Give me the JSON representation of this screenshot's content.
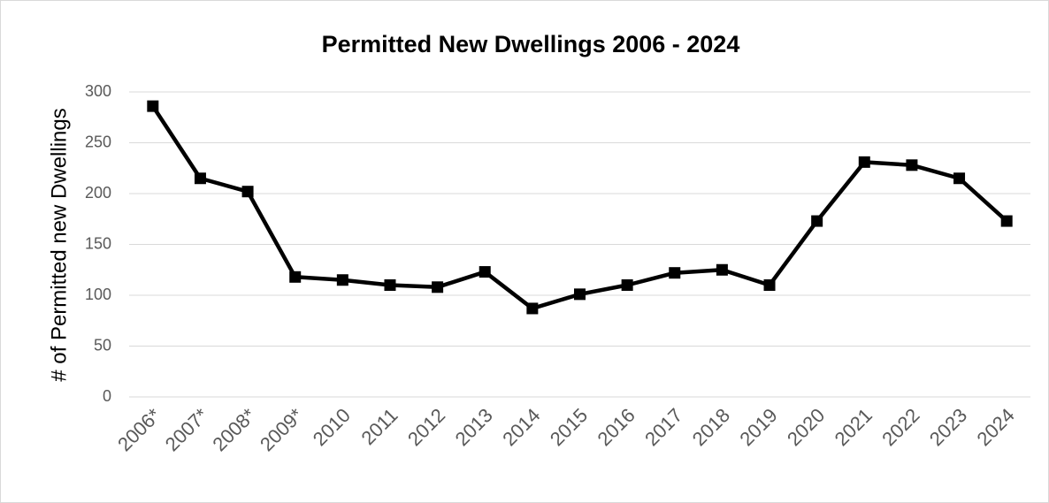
{
  "chart_data": {
    "type": "line",
    "title": "Permitted New Dwellings 2006 - 2024",
    "y_label": "# of Permitted new Dwellings",
    "categories": [
      "2006*",
      "2007*",
      "2008*",
      "2009*",
      "2010",
      "2011",
      "2012",
      "2013",
      "2014",
      "2015",
      "2016",
      "2017",
      "2018",
      "2019",
      "2020",
      "2021",
      "2022",
      "2023",
      "2024"
    ],
    "values": [
      286,
      215,
      202,
      118,
      115,
      110,
      108,
      123,
      87,
      101,
      110,
      122,
      125,
      110,
      173,
      231,
      228,
      215,
      173
    ],
    "color": "#000000",
    "ylim": [
      0,
      300
    ],
    "yticks": [
      0,
      50,
      100,
      150,
      200,
      250,
      300
    ],
    "grid": true
  }
}
